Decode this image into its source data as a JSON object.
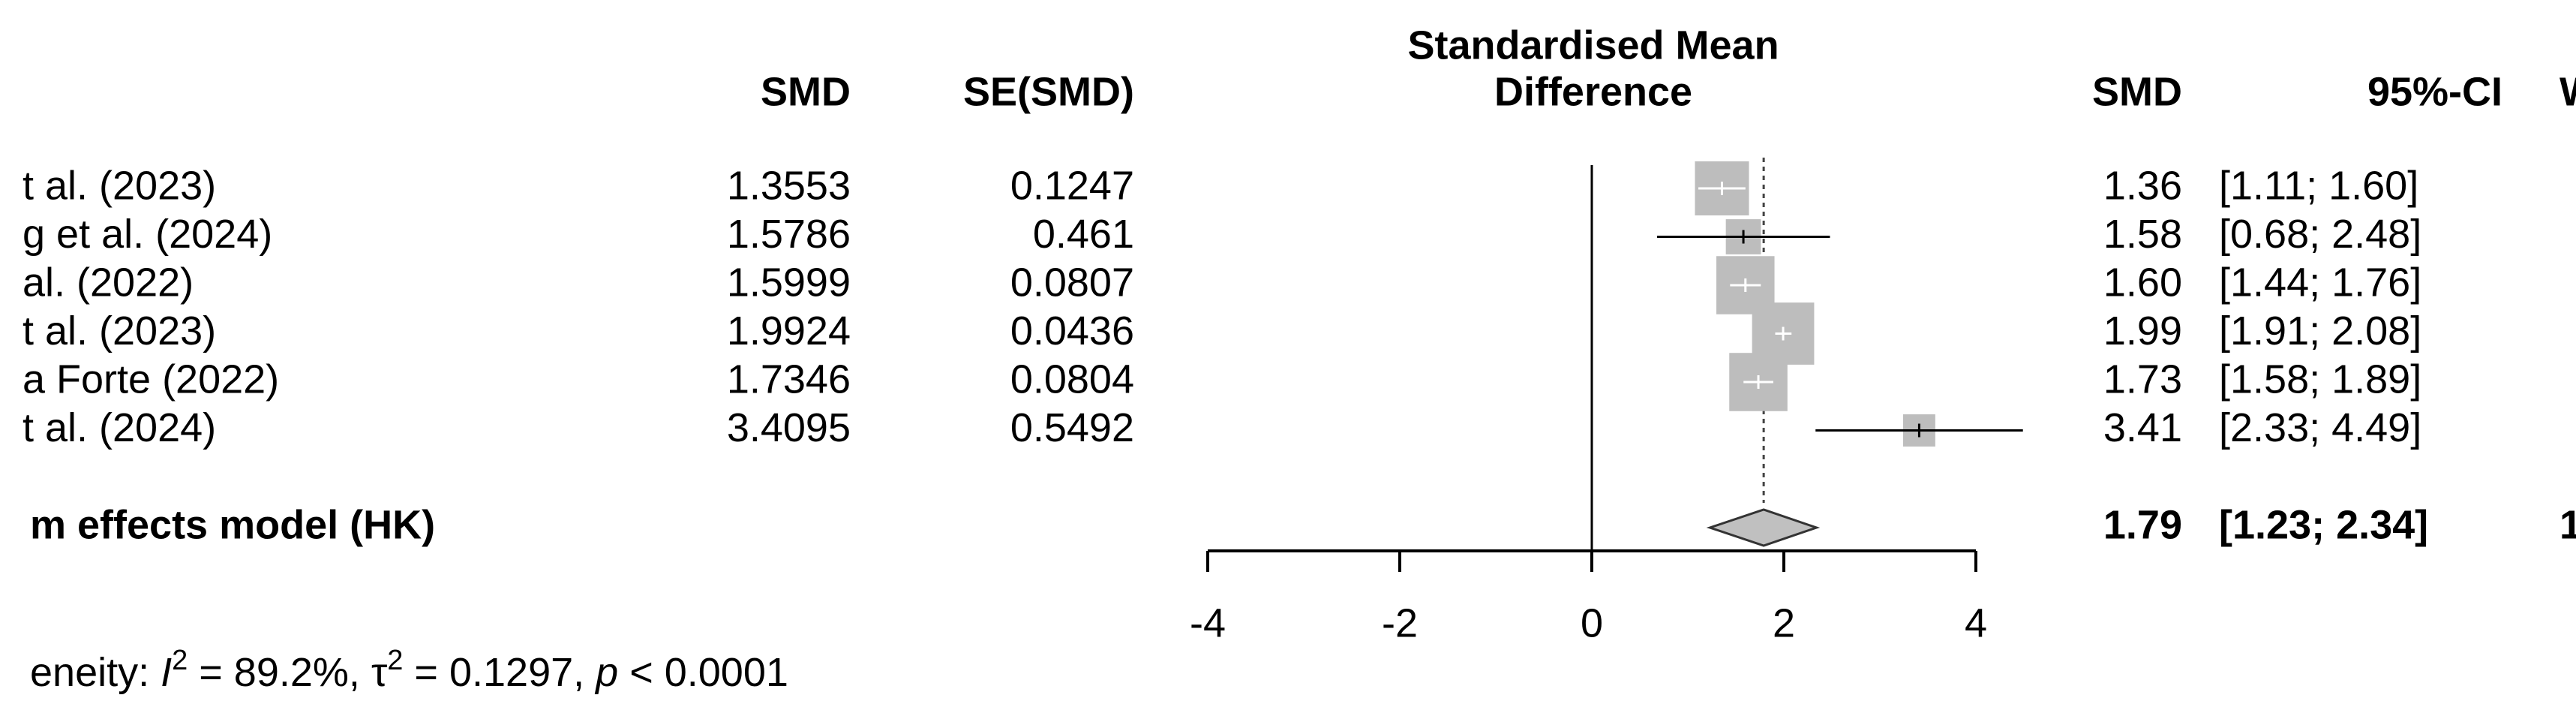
{
  "chart_data": {
    "type": "forest",
    "axis_title": [
      "Standardised Mean",
      "Difference"
    ],
    "headers": {
      "smd": "SMD",
      "se": "SE(SMD)",
      "smd_right": "SMD",
      "ci": "95%-CI",
      "weight": "W"
    },
    "studies": [
      {
        "label": "t al. (2023)",
        "smd": 1.3553,
        "se": 0.1247,
        "smd_label": "1.36",
        "lower": 1.11,
        "upper": 1.6,
        "ci_label": "[1.11; 1.60]"
      },
      {
        "label": "g et al. (2024)",
        "smd": 1.5786,
        "se": 0.461,
        "smd_label": "1.58",
        "lower": 0.68,
        "upper": 2.48,
        "ci_label": "[0.68; 2.48]"
      },
      {
        "label": "al. (2022)",
        "smd": 1.5999,
        "se": 0.0807,
        "smd_label": "1.60",
        "lower": 1.44,
        "upper": 1.76,
        "ci_label": "[1.44; 1.76]"
      },
      {
        "label": "t al. (2023)",
        "smd": 1.9924,
        "se": 0.0436,
        "smd_label": "1.99",
        "lower": 1.91,
        "upper": 2.08,
        "ci_label": "[1.91; 2.08]"
      },
      {
        "label": "a Forte (2022)",
        "smd": 1.7346,
        "se": 0.0804,
        "smd_label": "1.73",
        "lower": 1.58,
        "upper": 1.89,
        "ci_label": "[1.58; 1.89]"
      },
      {
        "label": "t al. (2024)",
        "smd": 3.4095,
        "se": 0.5492,
        "smd_label": "3.41",
        "lower": 2.33,
        "upper": 4.49,
        "ci_label": "[2.33; 4.49]"
      }
    ],
    "summary": {
      "label": "m effects model (HK)",
      "estimate": 1.79,
      "estimate_label": "1.79",
      "lower": 1.23,
      "upper": 2.34,
      "ci_label": "[1.23; 2.34]",
      "weight_label": "1"
    },
    "heterogeneity": {
      "prefix": "eneity: ",
      "i": "I",
      "i_sup": "2",
      "i_text": " = 89.2%, ",
      "tau": "τ",
      "tau_sup": "2",
      "tau_text": " = 0.1297, ",
      "p": "p",
      "p_text": " < 0.0001"
    },
    "xlim": [
      -4,
      4
    ],
    "xticks": [
      -4,
      -2,
      0,
      2,
      4
    ],
    "box_color": "#bdbdbd",
    "diamond_color": "#c0c0c0"
  }
}
